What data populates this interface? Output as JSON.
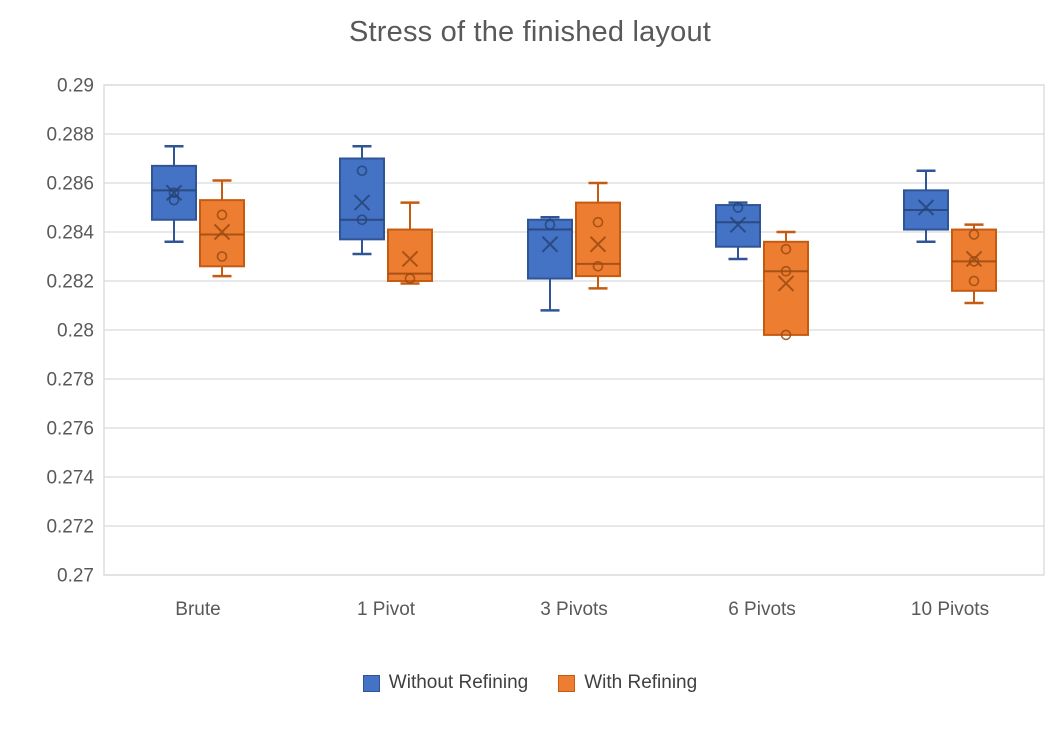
{
  "title": "Stress of the finished layout",
  "legend": {
    "items": [
      {
        "label": "Without Refining",
        "color": "#4472C4",
        "border": "#2F5597"
      },
      {
        "label": "With Refining",
        "color": "#ED7D31",
        "border": "#C55A11"
      }
    ]
  },
  "chart_data": {
    "type": "boxplot",
    "title": "Stress of the finished layout",
    "categories": [
      "Brute",
      "1 Pivot",
      "3 Pivots",
      "6 Pivots",
      "10 Pivots"
    ],
    "grid": true,
    "legend_position": "bottom",
    "grid_color": "#D9D9D9",
    "y_axis": {
      "min": 0.27,
      "max": 0.29,
      "tick_step": 0.002,
      "ticks": [
        {
          "value": 0.29,
          "label": "0.29"
        },
        {
          "value": 0.288,
          "label": "0.288"
        },
        {
          "value": 0.286,
          "label": "0.286"
        },
        {
          "value": 0.284,
          "label": "0.284"
        },
        {
          "value": 0.282,
          "label": "0.282"
        },
        {
          "value": 0.28,
          "label": "0.28"
        },
        {
          "value": 0.278,
          "label": "0.278"
        },
        {
          "value": 0.276,
          "label": "0.276"
        },
        {
          "value": 0.274,
          "label": "0.274"
        },
        {
          "value": 0.272,
          "label": "0.272"
        },
        {
          "value": 0.27,
          "label": "0.27"
        }
      ]
    },
    "series": [
      {
        "name": "Without Refining",
        "fill": "#4472C4",
        "stroke": "#2F5597",
        "accent": "#264478",
        "boxes": [
          {
            "category": "Brute",
            "whisker_low": 0.2836,
            "q1": 0.2845,
            "median": 0.2857,
            "q3": 0.2867,
            "whisker_high": 0.2875,
            "mean": 0.2856,
            "points": [
              0.2856,
              0.2853
            ]
          },
          {
            "category": "1 Pivot",
            "whisker_low": 0.2831,
            "q1": 0.2837,
            "median": 0.2845,
            "q3": 0.287,
            "whisker_high": 0.2875,
            "mean": 0.2852,
            "points": [
              0.2865,
              0.2845
            ]
          },
          {
            "category": "3 Pivots",
            "whisker_low": 0.2808,
            "q1": 0.2821,
            "median": 0.2841,
            "q3": 0.2845,
            "whisker_high": 0.2846,
            "mean": 0.2835,
            "points": [
              0.2843
            ]
          },
          {
            "category": "6 Pivots",
            "whisker_low": 0.2829,
            "q1": 0.2834,
            "median": 0.2844,
            "q3": 0.2851,
            "whisker_high": 0.2852,
            "mean": 0.2843,
            "points": [
              0.285
            ]
          },
          {
            "category": "10 Pivots",
            "whisker_low": 0.2836,
            "q1": 0.2841,
            "median": 0.2849,
            "q3": 0.2857,
            "whisker_high": 0.2865,
            "mean": 0.285,
            "points": []
          }
        ]
      },
      {
        "name": "With Refining",
        "fill": "#ED7D31",
        "stroke": "#C55A11",
        "accent": "#9C4A10",
        "boxes": [
          {
            "category": "Brute",
            "whisker_low": 0.2822,
            "q1": 0.2826,
            "median": 0.2839,
            "q3": 0.2853,
            "whisker_high": 0.2861,
            "mean": 0.284,
            "points": [
              0.2847,
              0.283
            ]
          },
          {
            "category": "1 Pivot",
            "whisker_low": 0.2819,
            "q1": 0.282,
            "median": 0.2823,
            "q3": 0.2841,
            "whisker_high": 0.2852,
            "mean": 0.2829,
            "points": [
              0.2821
            ]
          },
          {
            "category": "3 Pivots",
            "whisker_low": 0.2817,
            "q1": 0.2822,
            "median": 0.2827,
            "q3": 0.2852,
            "whisker_high": 0.286,
            "mean": 0.2835,
            "points": [
              0.2844,
              0.2826
            ]
          },
          {
            "category": "6 Pivots",
            "whisker_low": 0.2798,
            "q1": 0.2798,
            "median": 0.2824,
            "q3": 0.2836,
            "whisker_high": 0.284,
            "mean": 0.2819,
            "points": [
              0.2833,
              0.2824,
              0.2798
            ]
          },
          {
            "category": "10 Pivots",
            "whisker_low": 0.2811,
            "q1": 0.2816,
            "median": 0.2828,
            "q3": 0.2841,
            "whisker_high": 0.2843,
            "mean": 0.2829,
            "points": [
              0.2839,
              0.2828,
              0.282
            ]
          }
        ]
      }
    ]
  }
}
